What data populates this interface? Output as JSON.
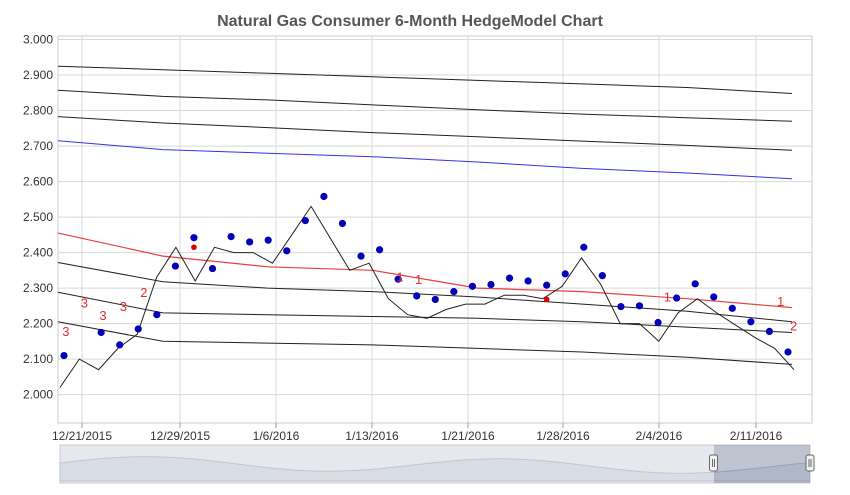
{
  "chart_data": {
    "type": "line",
    "title": "Natural Gas Consumer 6-Month HedgeModel Chart",
    "xlabel": "",
    "ylabel": "",
    "ylim": [
      1.92,
      3.01
    ],
    "yticks": [
      "2.000",
      "2.100",
      "2.200",
      "2.300",
      "2.400",
      "2.500",
      "2.600",
      "2.700",
      "2.800",
      "2.900",
      "3.000"
    ],
    "xticks": [
      "12/21/2015",
      "12/29/2015",
      "1/6/2016",
      "1/13/2016",
      "1/21/2016",
      "1/28/2016",
      "2/4/2016",
      "2/11/2016"
    ],
    "grid": true,
    "colors": {
      "price": "#222222",
      "bands": "#222222",
      "blue_line": "#3333dd",
      "red_line": "#e84040",
      "dots": "#0000bb",
      "red_dots": "#dd0000",
      "markers": "#e03030"
    },
    "band_lines": [
      {
        "values": [
          2.925,
          2.915,
          2.905,
          2.895,
          2.885,
          2.875,
          2.865,
          2.848
        ]
      },
      {
        "values": [
          2.857,
          2.84,
          2.83,
          2.816,
          2.802,
          2.79,
          2.78,
          2.77
        ]
      },
      {
        "values": [
          2.783,
          2.765,
          2.752,
          2.738,
          2.726,
          2.714,
          2.702,
          2.688
        ]
      },
      {
        "values": [
          2.372,
          2.318,
          2.3,
          2.29,
          2.275,
          2.255,
          2.235,
          2.205
        ]
      },
      {
        "values": [
          2.288,
          2.23,
          2.225,
          2.22,
          2.215,
          2.205,
          2.19,
          2.175
        ]
      },
      {
        "values": [
          2.205,
          2.15,
          2.145,
          2.14,
          2.13,
          2.12,
          2.105,
          2.085
        ]
      }
    ],
    "blue_line": {
      "values": [
        2.715,
        2.69,
        2.68,
        2.67,
        2.655,
        2.637,
        2.624,
        2.608
      ]
    },
    "red_line": {
      "values": [
        2.455,
        2.39,
        2.36,
        2.35,
        2.3,
        2.29,
        2.27,
        2.245
      ]
    },
    "price_line": [
      2.02,
      2.1,
      2.07,
      2.13,
      2.17,
      2.33,
      2.415,
      2.32,
      2.415,
      2.4,
      2.4,
      2.37,
      2.45,
      2.53,
      2.44,
      2.35,
      2.37,
      2.27,
      2.225,
      2.215,
      2.24,
      2.255,
      2.255,
      2.28,
      2.28,
      2.27,
      2.305,
      2.385,
      2.31,
      2.2,
      2.2,
      2.15,
      2.23,
      2.27,
      2.23,
      2.195,
      2.16,
      2.13,
      2.07
    ],
    "dots": [
      {
        "x": 0,
        "y": 2.11
      },
      {
        "x": 2,
        "y": 2.175
      },
      {
        "x": 3,
        "y": 2.14
      },
      {
        "x": 4,
        "y": 2.185
      },
      {
        "x": 5,
        "y": 2.225
      },
      {
        "x": 6,
        "y": 2.362
      },
      {
        "x": 7,
        "y": 2.442
      },
      {
        "x": 8,
        "y": 2.355
      },
      {
        "x": 9,
        "y": 2.445
      },
      {
        "x": 10,
        "y": 2.43
      },
      {
        "x": 11,
        "y": 2.435
      },
      {
        "x": 12,
        "y": 2.405
      },
      {
        "x": 13,
        "y": 2.49
      },
      {
        "x": 14,
        "y": 2.558
      },
      {
        "x": 15,
        "y": 2.482
      },
      {
        "x": 16,
        "y": 2.39
      },
      {
        "x": 17,
        "y": 2.408
      },
      {
        "x": 18,
        "y": 2.325
      },
      {
        "x": 19,
        "y": 2.278
      },
      {
        "x": 20,
        "y": 2.268
      },
      {
        "x": 21,
        "y": 2.29
      },
      {
        "x": 22,
        "y": 2.305
      },
      {
        "x": 23,
        "y": 2.31
      },
      {
        "x": 24,
        "y": 2.328
      },
      {
        "x": 25,
        "y": 2.32
      },
      {
        "x": 26,
        "y": 2.308
      },
      {
        "x": 27,
        "y": 2.34
      },
      {
        "x": 28,
        "y": 2.415
      },
      {
        "x": 29,
        "y": 2.335
      },
      {
        "x": 30,
        "y": 2.248
      },
      {
        "x": 31,
        "y": 2.25
      },
      {
        "x": 32,
        "y": 2.203
      },
      {
        "x": 33,
        "y": 2.272
      },
      {
        "x": 34,
        "y": 2.312
      },
      {
        "x": 35,
        "y": 2.275
      },
      {
        "x": 36,
        "y": 2.243
      },
      {
        "x": 37,
        "y": 2.205
      },
      {
        "x": 38,
        "y": 2.178
      },
      {
        "x": 39,
        "y": 2.12
      }
    ],
    "red_dots": [
      {
        "x": 7,
        "y": 2.415
      },
      {
        "x": 26,
        "y": 2.268
      }
    ],
    "markers": [
      {
        "label": "3",
        "x": 0.1,
        "y": 2.165
      },
      {
        "label": "3",
        "x": 1.1,
        "y": 2.245
      },
      {
        "label": "3",
        "x": 2.1,
        "y": 2.21
      },
      {
        "label": "3",
        "x": 3.2,
        "y": 2.235
      },
      {
        "label": "2",
        "x": 4.3,
        "y": 2.275
      },
      {
        "label": "1",
        "x": 18.1,
        "y": 2.318
      },
      {
        "label": "1",
        "x": 19.1,
        "y": 2.312
      },
      {
        "label": "1",
        "x": 32.5,
        "y": 2.262
      },
      {
        "label": "1",
        "x": 38.6,
        "y": 2.25
      },
      {
        "label": "2",
        "x": 39.3,
        "y": 2.18
      }
    ]
  }
}
